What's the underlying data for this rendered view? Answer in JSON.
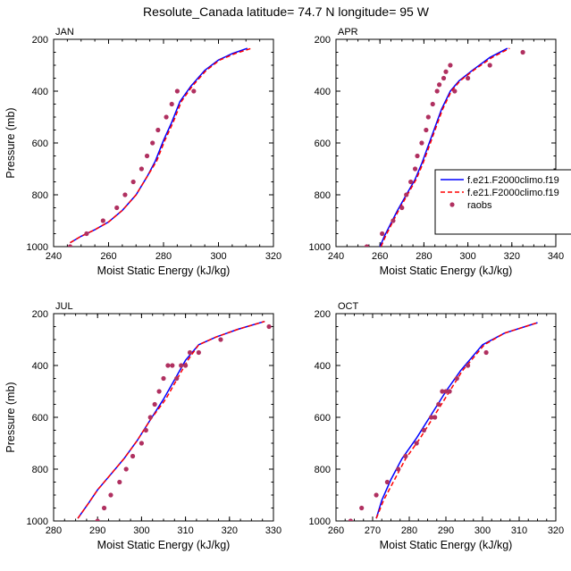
{
  "figure": {
    "title": "Resolute_Canada  latitude= 74.7 N longitude= 95 W"
  },
  "legend": {
    "entries": [
      {
        "label": "f.e21.F2000climo.f19",
        "color": "#0000ff",
        "style": "solid"
      },
      {
        "label": "f.e21.F2000climo.f19",
        "color": "#ff0000",
        "style": "dashed"
      },
      {
        "label": "raobs",
        "color": "#b03060",
        "style": "marker"
      }
    ]
  },
  "chart_data": [
    {
      "type": "line",
      "title": "JAN",
      "xlabel": "Moist Static Energy (kJ/kg)",
      "ylabel": "Pressure (mb)",
      "xlim": [
        240,
        320
      ],
      "ylim": [
        1000,
        200
      ],
      "xticks": [
        240,
        260,
        280,
        300,
        320
      ],
      "yticks": [
        200,
        400,
        600,
        800,
        1000
      ],
      "series": [
        {
          "name": "f.e21.F2000climo.f19",
          "color": "#0000ff",
          "dash": "solid",
          "x": [
            246,
            250,
            255,
            260,
            265,
            270,
            274,
            277,
            280,
            283,
            286,
            290,
            295,
            300,
            305,
            310.5
          ],
          "y": [
            985,
            960,
            935,
            905,
            860,
            800,
            730,
            670,
            590,
            520,
            440,
            380,
            320,
            280,
            255,
            235
          ]
        },
        {
          "name": "f.e21.F2000climo.f19",
          "color": "#ff0000",
          "dash": "dashed",
          "x": [
            246,
            250,
            255,
            260,
            265,
            270,
            274,
            277.5,
            280.5,
            283.5,
            286.5,
            290.5,
            295.5,
            300.5,
            306,
            312
          ],
          "y": [
            985,
            960,
            935,
            905,
            860,
            800,
            730,
            670,
            590,
            520,
            440,
            380,
            320,
            280,
            255,
            235
          ]
        },
        {
          "name": "raobs",
          "color": "#b03060",
          "marker": "circle",
          "x": [
            246,
            252,
            258,
            263,
            266,
            269,
            272,
            274,
            276,
            278,
            281,
            283,
            285,
            291
          ],
          "y": [
            1000,
            950,
            900,
            850,
            800,
            750,
            700,
            650,
            600,
            550,
            500,
            450,
            400,
            400
          ]
        }
      ]
    },
    {
      "type": "line",
      "title": "APR",
      "xlabel": "Moist Static Energy (kJ/kg)",
      "ylabel": "",
      "xlim": [
        240,
        340
      ],
      "ylim": [
        1000,
        200
      ],
      "xticks": [
        240,
        260,
        280,
        300,
        320,
        340
      ],
      "yticks": [
        200,
        400,
        600,
        800,
        1000
      ],
      "series": [
        {
          "name": "f.e21.F2000climo.f19",
          "color": "#0000ff",
          "dash": "solid",
          "x": [
            260,
            262,
            265,
            268,
            272,
            276,
            279,
            282,
            285,
            288,
            292,
            296,
            302,
            310,
            318
          ],
          "y": [
            1000,
            960,
            910,
            860,
            800,
            740,
            680,
            610,
            540,
            470,
            400,
            360,
            320,
            270,
            235
          ]
        },
        {
          "name": "f.e21.F2000climo.f19",
          "color": "#ff0000",
          "dash": "dashed",
          "x": [
            260.5,
            262.5,
            265.5,
            268.5,
            272.5,
            276.5,
            279.5,
            282.5,
            285.5,
            288.5,
            292.5,
            296.5,
            302.5,
            311,
            319
          ],
          "y": [
            1000,
            960,
            910,
            860,
            800,
            740,
            680,
            610,
            540,
            470,
            400,
            360,
            320,
            270,
            235
          ]
        },
        {
          "name": "raobs",
          "color": "#b03060",
          "marker": "circle",
          "x": [
            254,
            261,
            266,
            270,
            272,
            274,
            276,
            277,
            279,
            281,
            282,
            284,
            286,
            287,
            289,
            290,
            292,
            294,
            300,
            310,
            325
          ],
          "y": [
            1000,
            950,
            900,
            850,
            800,
            750,
            700,
            650,
            600,
            550,
            500,
            450,
            400,
            375,
            350,
            325,
            300,
            400,
            350,
            300,
            250
          ]
        }
      ]
    },
    {
      "type": "line",
      "title": "JUL",
      "xlabel": "Moist Static Energy (kJ/kg)",
      "ylabel": "Pressure (mb)",
      "xlim": [
        280,
        330
      ],
      "ylim": [
        1000,
        200
      ],
      "xticks": [
        280,
        290,
        300,
        310,
        320,
        330
      ],
      "yticks": [
        200,
        400,
        600,
        800,
        1000
      ],
      "series": [
        {
          "name": "f.e21.F2000climo.f19",
          "color": "#0000ff",
          "dash": "solid",
          "x": [
            285.5,
            288,
            290,
            293,
            296,
            299,
            302,
            305,
            308,
            310,
            313,
            317,
            322,
            328
          ],
          "y": [
            990,
            930,
            880,
            820,
            760,
            690,
            610,
            530,
            440,
            380,
            320,
            290,
            260,
            230
          ]
        },
        {
          "name": "f.e21.F2000climo.f19",
          "color": "#ff0000",
          "dash": "dashed",
          "x": [
            285.5,
            288,
            290,
            293,
            296,
            299,
            302,
            305.5,
            308.5,
            310.5,
            313,
            317,
            322,
            328
          ],
          "y": [
            990,
            930,
            880,
            820,
            760,
            690,
            610,
            530,
            440,
            380,
            320,
            290,
            260,
            230
          ]
        },
        {
          "name": "raobs",
          "color": "#b03060",
          "marker": "circle",
          "x": [
            290,
            291.5,
            293,
            295,
            296.5,
            298,
            300,
            301,
            302,
            303,
            304,
            305,
            306,
            307,
            308,
            309,
            310,
            311,
            313,
            318,
            329
          ],
          "y": [
            1000,
            950,
            900,
            850,
            800,
            750,
            700,
            650,
            600,
            550,
            500,
            450,
            400,
            400,
            450,
            400,
            400,
            350,
            350,
            300,
            250
          ]
        }
      ]
    },
    {
      "type": "line",
      "title": "OCT",
      "xlabel": "Moist Static Energy (kJ/kg)",
      "ylabel": "",
      "xlim": [
        260,
        320
      ],
      "ylim": [
        1000,
        200
      ],
      "xticks": [
        260,
        270,
        280,
        290,
        300,
        310,
        320
      ],
      "yticks": [
        200,
        400,
        600,
        800,
        1000
      ],
      "series": [
        {
          "name": "f.e21.F2000climo.f19",
          "color": "#0000ff",
          "dash": "solid",
          "x": [
            271,
            272.5,
            275,
            278,
            282,
            286,
            290,
            294,
            297,
            300,
            306,
            315
          ],
          "y": [
            990,
            920,
            840,
            760,
            680,
            590,
            500,
            420,
            370,
            320,
            275,
            235
          ]
        },
        {
          "name": "f.e21.F2000climo.f19",
          "color": "#ff0000",
          "dash": "dashed",
          "x": [
            271,
            273,
            276,
            279,
            283,
            287,
            291,
            294.5,
            297.5,
            300.5,
            306,
            315
          ],
          "y": [
            990,
            920,
            840,
            760,
            680,
            590,
            500,
            420,
            370,
            320,
            275,
            235
          ]
        },
        {
          "name": "raobs",
          "color": "#b03060",
          "marker": "circle",
          "x": [
            264,
            267,
            271,
            274,
            277,
            279,
            282,
            284,
            286,
            287,
            288,
            289,
            290,
            291,
            293,
            296,
            301
          ],
          "y": [
            1000,
            950,
            900,
            850,
            800,
            750,
            700,
            650,
            600,
            600,
            550,
            500,
            500,
            500,
            450,
            400,
            350
          ]
        }
      ]
    }
  ]
}
